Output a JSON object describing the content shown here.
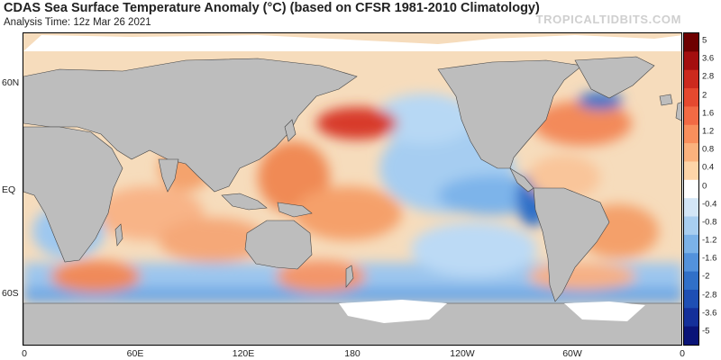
{
  "header": {
    "title": "CDAS Sea Surface Temperature Anomaly (°C) (based on CFSR 1981-2010 Climatology)",
    "analysis_time": "Analysis Time: 12z Mar 26 2021",
    "brand": "TROPICALTIDBITS.COM"
  },
  "map": {
    "latitude_labels": [
      "60N",
      "EQ",
      "60S"
    ],
    "longitude_labels": [
      "0",
      "60E",
      "120E",
      "180",
      "120W",
      "60W",
      "0"
    ]
  },
  "colorbar": {
    "labels": [
      "5",
      "3.6",
      "2.8",
      "2",
      "1.6",
      "1.2",
      "0.8",
      "0.4",
      "0",
      "-0.4",
      "-0.8",
      "-1.2",
      "-1.6",
      "-2",
      "-2.8",
      "-3.6",
      "-5"
    ],
    "colors": [
      "#6e0000",
      "#a40f0f",
      "#cc2a1e",
      "#e5492f",
      "#f26a44",
      "#f98f5c",
      "#fbb27d",
      "#fdd5a8",
      "#ffffff",
      "#d3e6f7",
      "#a8cef0",
      "#7bb2e8",
      "#5392dc",
      "#3070c8",
      "#1e4fb4",
      "#14309a",
      "#0a1478"
    ]
  },
  "palette": {
    "land": "#bdbdbd",
    "ice": "#ffffff",
    "warm_ocean": "#f4c79a",
    "cool_ocean": "#a8cef0"
  }
}
